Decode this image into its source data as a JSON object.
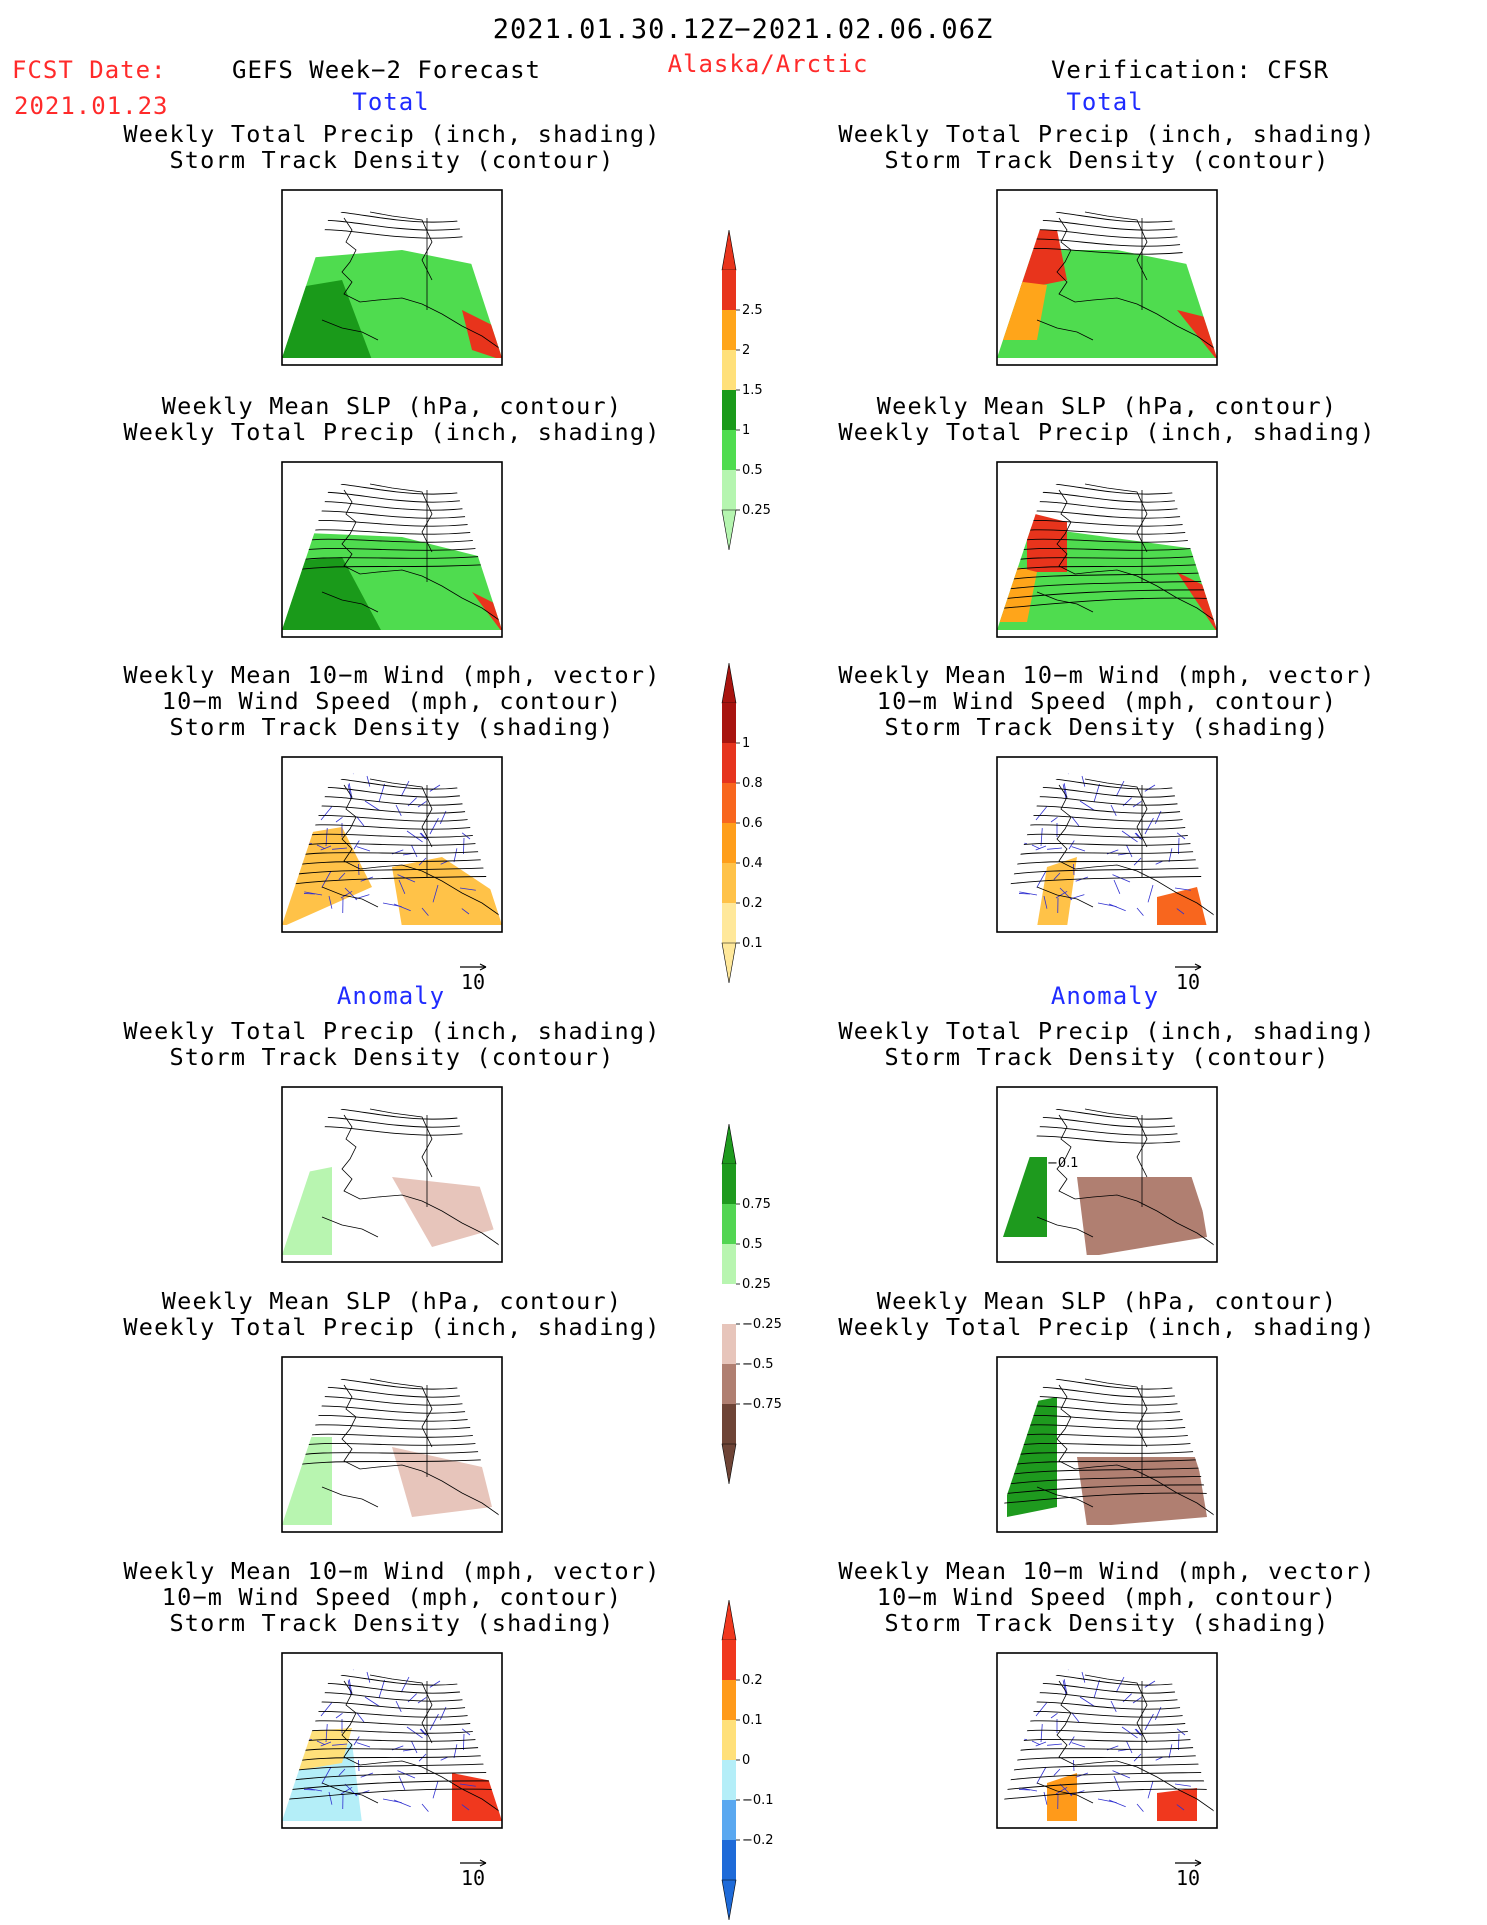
{
  "header": {
    "date_range": "2021.01.30.12Z−2021.02.06.06Z",
    "fcst_label": "FCST Date:",
    "fcst_date": "2021.01.23",
    "product": "GEFS Week−2 Forecast",
    "region": "Alaska/Arctic",
    "verification": "Verification: CFSR"
  },
  "sections": {
    "total": "Total",
    "anomaly": "Anomaly"
  },
  "panel_titles": {
    "precip_storm": [
      "Weekly Total Precip (inch, shading)",
      "Storm Track Density (contour)"
    ],
    "slp_precip": [
      "Weekly Mean SLP (hPa, contour)",
      "Weekly Total Precip (inch, shading)"
    ],
    "wind_storm": [
      "Weekly Mean 10−m Wind (mph, vector)",
      "10−m Wind Speed (mph, contour)",
      "Storm Track Density (shading)"
    ]
  },
  "vector_ref": "10",
  "map_label": "−0.1",
  "colorbars": {
    "total_precip": {
      "ticks": [
        "2.5",
        "2",
        "1.5",
        "1",
        "0.5",
        "0.25"
      ],
      "colors": [
        "#e8341c",
        "#ffa51a",
        "#ffe07a",
        "#1a9a1a",
        "#4fdc4f",
        "#b5f5b0"
      ]
    },
    "total_storm": {
      "ticks": [
        "1",
        "0.8",
        "0.6",
        "0.4",
        "0.2",
        "0.1"
      ],
      "colors": [
        "#a8140f",
        "#e6341e",
        "#f8661e",
        "#ff9e1a",
        "#ffc248",
        "#ffe89a"
      ]
    },
    "anom_precip": {
      "ticks": [
        "0.75",
        "0.5",
        "0.25",
        "−0.25",
        "−0.5",
        "−0.75"
      ],
      "colors": [
        "#1e9a1e",
        "#52d552",
        "#b8f5b0",
        "#ffffff",
        "#e7c5bb",
        "#b07f71",
        "#6e4436"
      ]
    },
    "anom_storm": {
      "ticks": [
        "0.2",
        "0.1",
        "0",
        "−0.1",
        "−0.2"
      ],
      "colors": [
        "#f0381e",
        "#ff9a1a",
        "#ffe07a",
        "#b4eef8",
        "#5aa8f0",
        "#1e6ad8"
      ]
    }
  },
  "colors": {
    "red_text": "#ff2a2a",
    "blue_text": "#1f2bff",
    "vector_blue": "#3030d0"
  }
}
